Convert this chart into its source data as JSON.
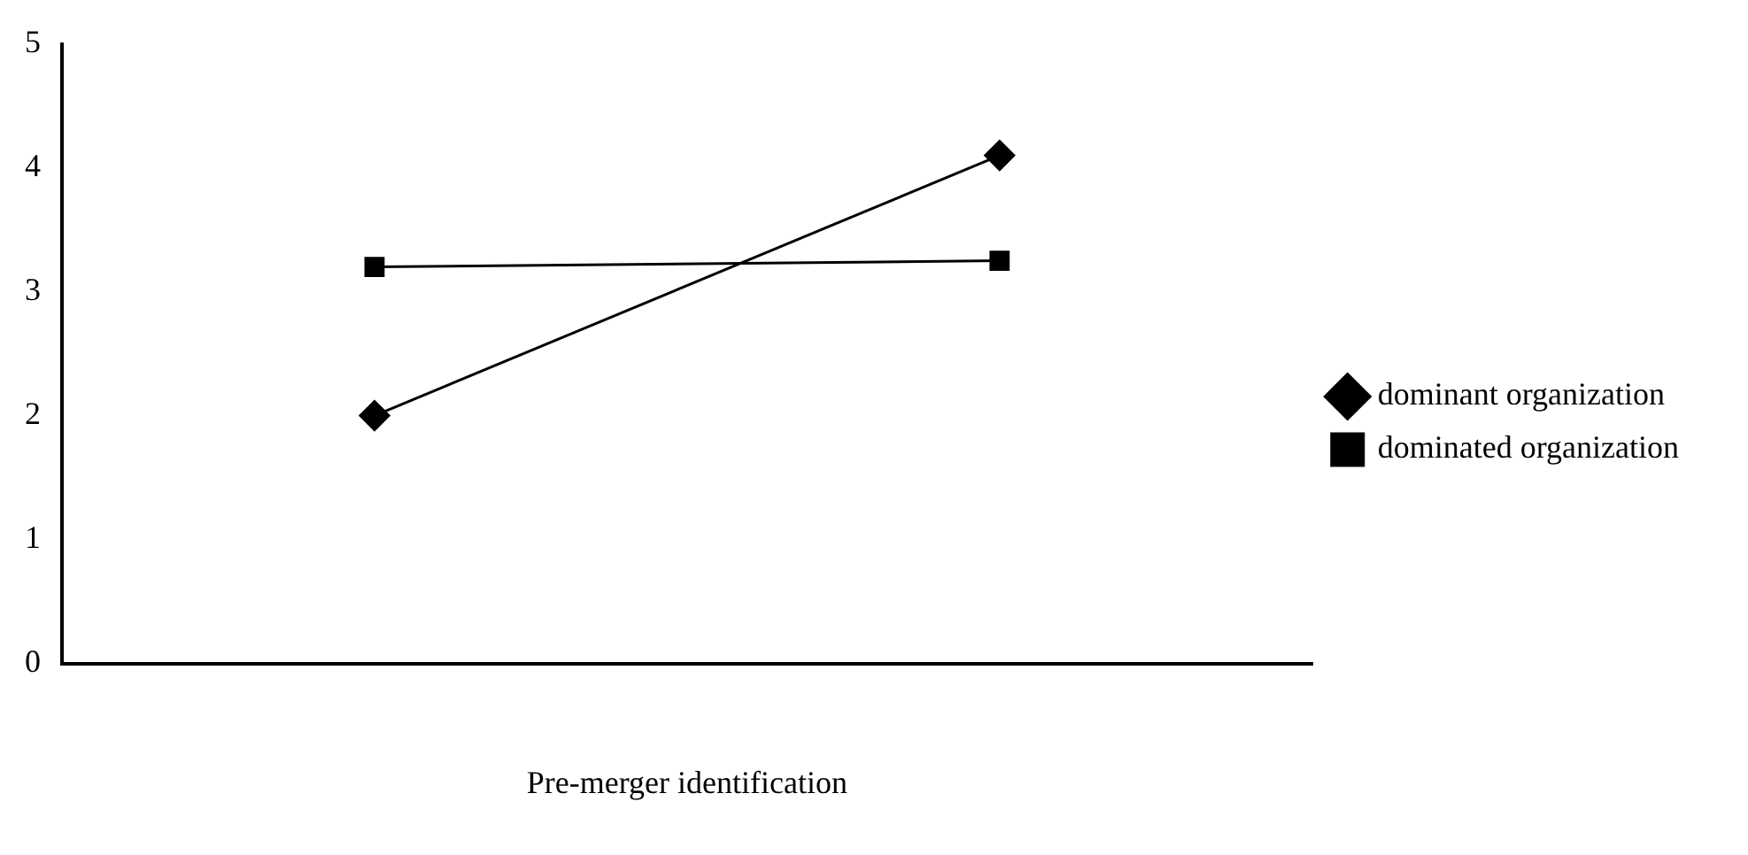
{
  "chart_data": {
    "type": "line",
    "xlabel": "Pre-merger identification",
    "categories": [
      null,
      null
    ],
    "series": [
      {
        "name": "dominant organization",
        "color": "#000000",
        "values": [
          2.0,
          4.1
        ],
        "marker": "diamond"
      },
      {
        "name": "dominated organization",
        "color": "#000000",
        "values": [
          3.2,
          3.25
        ],
        "marker": "square"
      }
    ],
    "ylim": [
      0,
      5
    ],
    "yticks": [
      0,
      1,
      2,
      3,
      4,
      5
    ],
    "grid": false,
    "legend": "right",
    "line_style": "solid"
  }
}
